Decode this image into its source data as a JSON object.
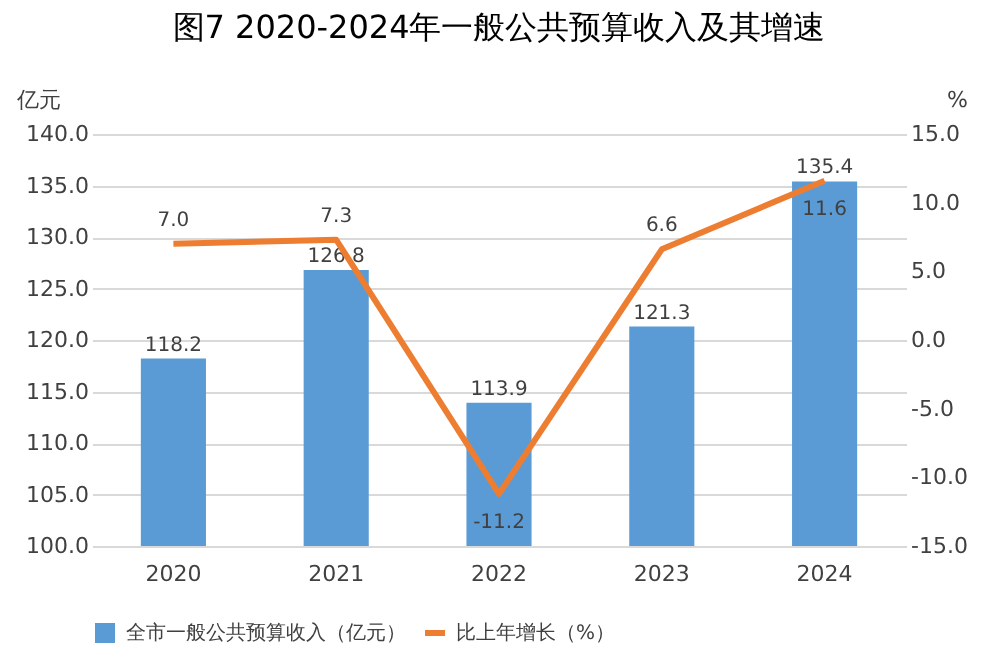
{
  "chart_data": {
    "type": "bar",
    "title": "图7  2020-2024年一般公共预算收入及其增速",
    "ylabel": "亿元",
    "y2label": "%",
    "categories": [
      "2020",
      "2021",
      "2022",
      "2023",
      "2024"
    ],
    "series": [
      {
        "name": "全市一般公共预算收入（亿元）",
        "color": "#5b9bd5",
        "values": [
          118.2,
          126.8,
          113.9,
          121.3,
          135.4
        ],
        "value_labels": [
          "118.2",
          "126.8",
          "113.9",
          "121.3",
          "135.4"
        ]
      },
      {
        "name": "比上年增长（%）",
        "type": "line",
        "axis": "y2",
        "color": "#ed7d31",
        "marker": "none",
        "values": [
          7.0,
          7.3,
          -11.2,
          6.6,
          11.6
        ],
        "value_labels": [
          "7.0",
          "7.3",
          "-11.2",
          "6.6",
          "11.6"
        ]
      }
    ],
    "ylim": [
      100,
      140
    ],
    "yticks": [
      {
        "value": 100,
        "label": "100.0"
      },
      {
        "value": 105,
        "label": "105.0"
      },
      {
        "value": 110,
        "label": "110.0"
      },
      {
        "value": 115,
        "label": "115.0"
      },
      {
        "value": 120,
        "label": "120.0"
      },
      {
        "value": 125,
        "label": "125.0"
      },
      {
        "value": 130,
        "label": "130.0"
      },
      {
        "value": 135,
        "label": "135.0"
      },
      {
        "value": 140,
        "label": "140.0"
      }
    ],
    "y2lim": [
      -15,
      15
    ],
    "y2ticks": [
      {
        "value": -15,
        "label": "-15.0"
      },
      {
        "value": -10,
        "label": "-10.0"
      },
      {
        "value": -5,
        "label": "-5.0"
      },
      {
        "value": 0,
        "label": "0.0"
      },
      {
        "value": 5,
        "label": "5.0"
      },
      {
        "value": 10,
        "label": "10.0"
      },
      {
        "value": 15,
        "label": "15.0"
      }
    ],
    "grid": "y",
    "legend": "bottom"
  }
}
